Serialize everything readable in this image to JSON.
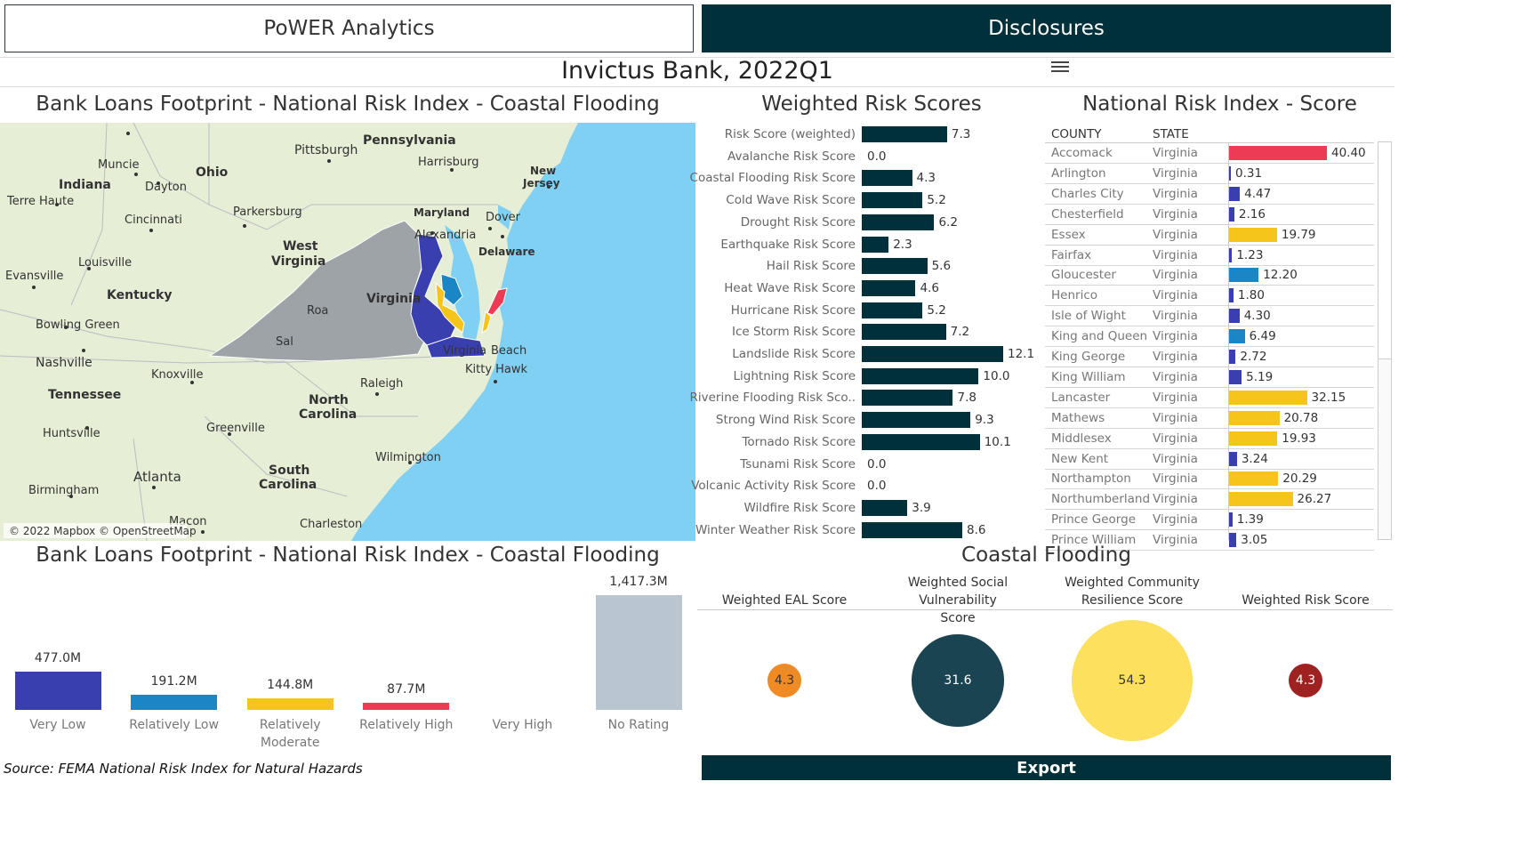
{
  "header": {
    "power_label": "PoWER Analytics",
    "disclosures_label": "Disclosures",
    "bank_title": "Invictus Bank, 2022Q1"
  },
  "map_section": {
    "title": "Bank Loans Footprint - National Risk Index -  Coastal Flooding",
    "attribution": "© 2022 Mapbox © OpenStreetMap",
    "labels": {
      "pennsylvania": "Pennsylvania",
      "pittsburgh": "Pittsburgh",
      "harrisburg": "Harrisburg",
      "new_jersey_1": "New",
      "new_jersey_2": "Jersey",
      "muncie": "Muncie",
      "ohio": "Ohio",
      "indiana": "Indiana",
      "dayton": "Dayton",
      "terre_haute": "Terre Haute",
      "cincinnati": "Cincinnati",
      "parkersburg": "Parkersburg",
      "maryland": "Maryland",
      "dover": "Dover",
      "alexandria": "Alexandria",
      "delaware": "Delaware",
      "west_virginia_1": "West",
      "west_virginia_2": "Virginia",
      "louisville": "Louisville",
      "evansville": "Evansville",
      "kentucky": "Kentucky",
      "virginia": "Virginia",
      "roanoke": "Roa",
      "bowling_green": "Bowling Green",
      "salem": "Sal",
      "virginia_beach_1": "Virginia",
      "virginia_beach_2": "Beach",
      "kitty_hawk": "Kitty Hawk",
      "nashville": "Nashville",
      "knoxville": "Knoxville",
      "tennessee": "Tennessee",
      "raleigh": "Raleigh",
      "north_carolina_1": "North",
      "north_carolina_2": "Carolina",
      "huntsville": "Huntsville",
      "greenville": "Greenville",
      "wilmington": "Wilmington",
      "atlanta": "Atlanta",
      "south_carolina_1": "South",
      "south_carolina_2": "Carolina",
      "birmingham": "Birmingham",
      "macon": "Macon",
      "charleston": "Charleston"
    },
    "colors": {
      "land": "#e6eed6",
      "water": "#7fd0f2",
      "grey_county": "#9da3a6",
      "very_low": "#3a3fb0",
      "relatively_low": "#1a86c6",
      "moderate": "#f6c51c",
      "high": "#ee3b55"
    }
  },
  "weighted_risk": {
    "title": "Weighted Risk Scores",
    "chart_data": {
      "type": "bar",
      "orientation": "horizontal",
      "categories": [
        "Risk Score (weighted)",
        "Avalanche Risk Score",
        "Coastal Flooding Risk Score",
        "Cold Wave Risk Score",
        "Drought Risk Score",
        "Earthquake Risk Score",
        "Hail Risk Score",
        "Heat Wave Risk Score",
        "Hurricane Risk Score",
        "Ice Storm Risk Score",
        "Landslide Risk Score",
        "Lightning Risk Score",
        "Riverine Flooding Risk Sco..",
        "Strong Wind Risk Score",
        "Tornado Risk Score",
        "Tsunami Risk Score",
        "Volcanic Activity Risk Score",
        "Wildfire Risk Score",
        "Winter Weather Risk Score"
      ],
      "values": [
        7.3,
        0.0,
        4.3,
        5.2,
        6.2,
        2.3,
        5.6,
        4.6,
        5.2,
        7.2,
        12.1,
        10.0,
        7.8,
        9.3,
        10.1,
        0.0,
        0.0,
        3.9,
        8.6
      ],
      "value_labels": [
        "7.3",
        "0.0",
        "4.3",
        "5.2",
        "6.2",
        "2.3",
        "5.6",
        "4.6",
        "5.2",
        "7.2",
        "12.1",
        "10.0",
        "7.8",
        "9.3",
        "10.1",
        "0.0",
        "0.0",
        "3.9",
        "8.6"
      ],
      "xlim": [
        0,
        12.1
      ],
      "color": "#00303a"
    }
  },
  "nri": {
    "title": "National Risk Index - Score",
    "col_county": "COUNTY",
    "col_state": "STATE",
    "chart_data": {
      "type": "bar",
      "orientation": "horizontal",
      "rows": [
        {
          "county": "Accomack",
          "state": "Virginia",
          "value": 40.4,
          "label": "40.40",
          "color": "#ee3b55"
        },
        {
          "county": "Arlington",
          "state": "Virginia",
          "value": 0.31,
          "label": "0.31",
          "color": "#3a3fb0"
        },
        {
          "county": "Charles City",
          "state": "Virginia",
          "value": 4.47,
          "label": "4.47",
          "color": "#3a3fb0"
        },
        {
          "county": "Chesterfield",
          "state": "Virginia",
          "value": 2.16,
          "label": "2.16",
          "color": "#3a3fb0"
        },
        {
          "county": "Essex",
          "state": "Virginia",
          "value": 19.79,
          "label": "19.79",
          "color": "#f6c51c"
        },
        {
          "county": "Fairfax",
          "state": "Virginia",
          "value": 1.23,
          "label": "1.23",
          "color": "#3a3fb0"
        },
        {
          "county": "Gloucester",
          "state": "Virginia",
          "value": 12.2,
          "label": "12.20",
          "color": "#1a86c6"
        },
        {
          "county": "Henrico",
          "state": "Virginia",
          "value": 1.8,
          "label": "1.80",
          "color": "#3a3fb0"
        },
        {
          "county": "Isle of Wight",
          "state": "Virginia",
          "value": 4.3,
          "label": "4.30",
          "color": "#3a3fb0"
        },
        {
          "county": "King and Queen",
          "state": "Virginia",
          "value": 6.49,
          "label": "6.49",
          "color": "#1a86c6"
        },
        {
          "county": "King George",
          "state": "Virginia",
          "value": 2.72,
          "label": "2.72",
          "color": "#3a3fb0"
        },
        {
          "county": "King William",
          "state": "Virginia",
          "value": 5.19,
          "label": "5.19",
          "color": "#3a3fb0"
        },
        {
          "county": "Lancaster",
          "state": "Virginia",
          "value": 32.15,
          "label": "32.15",
          "color": "#f6c51c"
        },
        {
          "county": "Mathews",
          "state": "Virginia",
          "value": 20.78,
          "label": "20.78",
          "color": "#f6c51c"
        },
        {
          "county": "Middlesex",
          "state": "Virginia",
          "value": 19.93,
          "label": "19.93",
          "color": "#f6c51c"
        },
        {
          "county": "New Kent",
          "state": "Virginia",
          "value": 3.24,
          "label": "3.24",
          "color": "#3a3fb0"
        },
        {
          "county": "Northampton",
          "state": "Virginia",
          "value": 20.29,
          "label": "20.29",
          "color": "#f6c51c"
        },
        {
          "county": "Northumberland",
          "state": "Virginia",
          "value": 26.27,
          "label": "26.27",
          "color": "#f6c51c"
        },
        {
          "county": "Prince George",
          "state": "Virginia",
          "value": 1.39,
          "label": "1.39",
          "color": "#3a3fb0"
        },
        {
          "county": "Prince William",
          "state": "Virginia",
          "value": 3.05,
          "label": "3.05",
          "color": "#3a3fb0"
        }
      ],
      "xlim": [
        0,
        40.4
      ]
    }
  },
  "loans": {
    "title": "Bank Loans Footprint -  National Risk Index - Coastal Flooding",
    "chart_data": {
      "type": "bar",
      "categories": [
        "Very Low",
        "Relatively Low",
        "Relatively Moderate",
        "Relatively High",
        "Very High",
        "No Rating"
      ],
      "category_lines": [
        [
          "Very Low"
        ],
        [
          "Relatively Low"
        ],
        [
          "Relatively",
          "Moderate"
        ],
        [
          "Relatively High"
        ],
        [
          "Very High"
        ],
        [
          "No Rating"
        ]
      ],
      "values": [
        477.0,
        191.2,
        144.8,
        87.7,
        0,
        1417.3
      ],
      "value_labels": [
        "477.0M",
        "191.2M",
        "144.8M",
        "87.7M",
        "",
        "1,417.3M"
      ],
      "colors": [
        "#3a3fb0",
        "#1a86c6",
        "#f6c51c",
        "#ee3b55",
        "#8b1a1a",
        "#b9c5d0"
      ],
      "units": "M",
      "ylim": [
        0,
        1417.3
      ]
    },
    "source": "Source: FEMA National Risk Index for Natural Hazards"
  },
  "coastal": {
    "title": "Coastal Flooding",
    "columns": [
      {
        "label_lines": [
          "Weighted EAL Score"
        ],
        "value": 4.3,
        "value_label": "4.3",
        "color": "#f08a24",
        "text_color": "#333333"
      },
      {
        "label_lines": [
          "Weighted Social Vulnerability",
          "Score"
        ],
        "value": 31.6,
        "value_label": "31.6",
        "color": "#1b4452",
        "text_color": "#ffffff"
      },
      {
        "label_lines": [
          "Weighted Community",
          "Resilience Score"
        ],
        "value": 54.3,
        "value_label": "54.3",
        "color": "#fde05e",
        "text_color": "#333333"
      },
      {
        "label_lines": [
          "Weighted Risk Score"
        ],
        "value": 4.3,
        "value_label": "4.3",
        "color": "#9e2222",
        "text_color": "#ffffff"
      }
    ]
  },
  "export_label": "Export"
}
